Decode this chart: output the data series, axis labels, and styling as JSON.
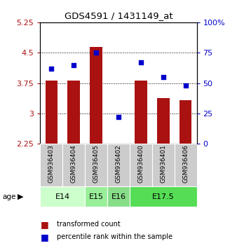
{
  "title": "GDS4591 / 1431149_at",
  "samples": [
    "GSM936403",
    "GSM936404",
    "GSM936405",
    "GSM936402",
    "GSM936400",
    "GSM936401",
    "GSM936406"
  ],
  "transformed_counts": [
    3.82,
    3.82,
    4.65,
    2.22,
    3.82,
    3.38,
    3.32
  ],
  "percentile_ranks": [
    62,
    65,
    75,
    22,
    67,
    55,
    48
  ],
  "age_groups": [
    {
      "label": "E14",
      "indices": [
        0,
        1
      ],
      "color": "#ccffcc"
    },
    {
      "label": "E15",
      "indices": [
        2
      ],
      "color": "#99ee99"
    },
    {
      "label": "E16",
      "indices": [
        3
      ],
      "color": "#88dd88"
    },
    {
      "label": "E17.5",
      "indices": [
        4,
        5,
        6
      ],
      "color": "#55dd55"
    }
  ],
  "ylim_left": [
    2.25,
    5.25
  ],
  "ylim_right": [
    0,
    100
  ],
  "yticks_left": [
    2.25,
    3.0,
    3.75,
    4.5,
    5.25
  ],
  "yticks_right": [
    0,
    25,
    50,
    75,
    100
  ],
  "bar_color": "#aa1111",
  "dot_color": "#0000cc",
  "bar_width": 0.55,
  "sample_bg_color": "#cccccc",
  "grid_pcts": [
    75,
    50,
    25
  ]
}
